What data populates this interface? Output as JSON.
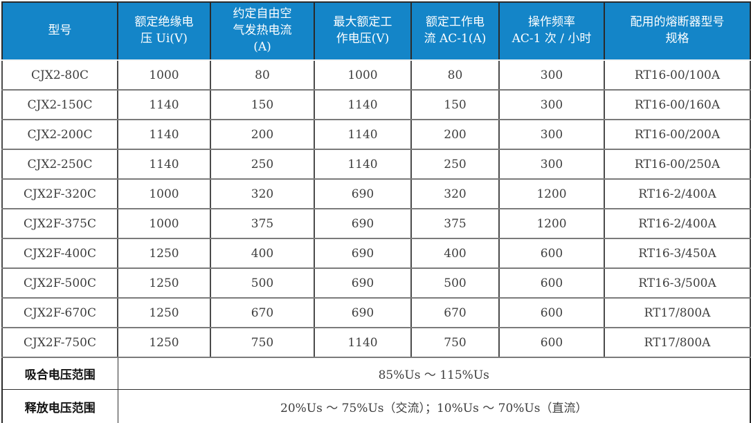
{
  "colors": {
    "header_bg": "#1485c8",
    "header_text": "#ffffff",
    "body_text": "#3d3d3d",
    "grid": "#7a7a7a",
    "grid_dark": "#2a2a2a"
  },
  "table": {
    "headers": [
      "型号",
      "额定绝缘电\n压 Ui(V)",
      "约定自由空\n气发热电流\n(A)",
      "最大额定工\n作电压(V)",
      "额定工作电\n流 AC-1(A)",
      "操作频率\nAC-1 次 / 小时",
      "配用的熔断器型号\n规格"
    ],
    "rows": [
      [
        "CJX2-80C",
        "1000",
        "80",
        "1000",
        "80",
        "300",
        "RT16-00/100A"
      ],
      [
        "CJX2-150C",
        "1140",
        "150",
        "1140",
        "150",
        "300",
        "RT16-00/160A"
      ],
      [
        "CJX2-200C",
        "1140",
        "200",
        "1140",
        "200",
        "300",
        "RT16-00/200A"
      ],
      [
        "CJX2-250C",
        "1140",
        "250",
        "1140",
        "250",
        "300",
        "RT16-00/250A"
      ],
      [
        "CJX2F-320C",
        "1000",
        "320",
        "690",
        "320",
        "1200",
        "RT16-2/400A"
      ],
      [
        "CJX2F-375C",
        "1000",
        "375",
        "690",
        "375",
        "1200",
        "RT16-2/400A"
      ],
      [
        "CJX2F-400C",
        "1250",
        "400",
        "690",
        "400",
        "600",
        "RT16-3/450A"
      ],
      [
        "CJX2F-500C",
        "1250",
        "500",
        "690",
        "500",
        "600",
        "RT16-3/500A"
      ],
      [
        "CJX2F-670C",
        "1250",
        "670",
        "690",
        "670",
        "600",
        "RT17/800A"
      ],
      [
        "CJX2F-750C",
        "1250",
        "750",
        "1140",
        "750",
        "600",
        "RT17/800A"
      ]
    ],
    "footer_rows": [
      {
        "label": "吸合电压范围",
        "value": "85%Us ～ 115%Us"
      },
      {
        "label": "释放电压范围",
        "value": "20%Us ～ 75%Us（交流）；10%Us ～ 70%Us（直流）"
      }
    ]
  }
}
